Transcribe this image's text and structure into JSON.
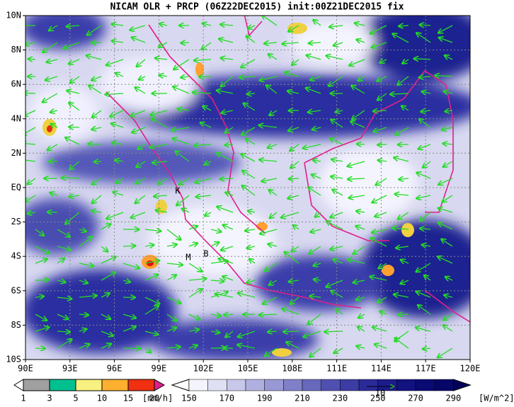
{
  "title": "NICAM OLR + PRCP (06Z22DEC2015) init:00Z21DEC2015 fix",
  "lon_labels": [
    "90E",
    "93E",
    "96E",
    "99E",
    "102E",
    "105E",
    "108E",
    "111E",
    "114E",
    "117E",
    "120E"
  ],
  "lat_labels": [
    "10N",
    "8N",
    "6N",
    "4N",
    "2N",
    "EQ",
    "2S",
    "4S",
    "6S",
    "8S",
    "10S"
  ],
  "markers": [
    "K",
    "M",
    "B"
  ],
  "precip_legend": {
    "levels": [
      "1",
      "3",
      "5",
      "10",
      "15",
      "20"
    ],
    "unit": "[mm/h]"
  },
  "olr_legend": {
    "levels": [
      "150",
      "170",
      "190",
      "210",
      "230",
      "250",
      "270",
      "290"
    ],
    "unit": "[W/m^2]"
  },
  "vector_label": "10"
}
